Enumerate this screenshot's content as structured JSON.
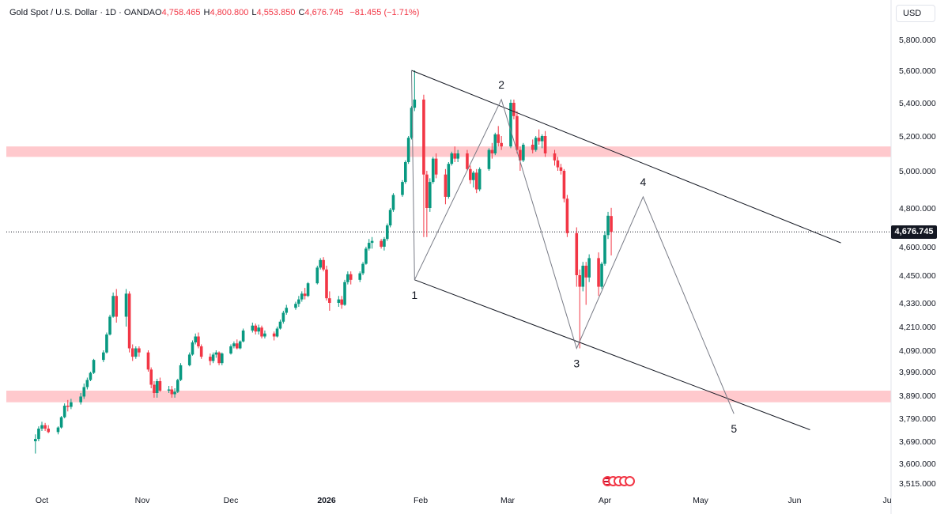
{
  "header": {
    "symbol": "Gold Spot / U.S. Dollar · 1D · OANDA",
    "open_label": "O",
    "open_value": "4,758.465",
    "high_label": "H",
    "high_value": "4,800.800",
    "low_label": "L",
    "low_value": "4,553.850",
    "close_label": "C",
    "close_value": "4,676.745",
    "change": "−81.455 (−1.71%)"
  },
  "currency": "USD",
  "last_price_label": "4,676.745",
  "colors": {
    "up": "#089981",
    "down": "#f23645",
    "zone": "#ffc9cd",
    "axis_text": "#131722",
    "wave_line": "#787b86",
    "channel_line": "#131722"
  },
  "icons": {
    "event_badge": "us-flag-icon"
  },
  "chart_data": {
    "type": "candlestick",
    "y_ticks": [
      "5,800.000",
      "5,600.000",
      "5,400.000",
      "5,200.000",
      "5,000.000",
      "4,800.000",
      "4,600.000",
      "4,450.000",
      "4,330.000",
      "4,210.000",
      "4,090.000",
      "3,990.000",
      "3,890.000",
      "3,790.000",
      "3,690.000",
      "3,600.000",
      "3,515.000"
    ],
    "x_ticks": [
      "Oct",
      "Nov",
      "Dec",
      "2026",
      "Feb",
      "Mar",
      "Apr",
      "May",
      "Jun",
      "Ju"
    ],
    "last_price": 4676.745,
    "resistance_zone": [
      5080,
      5140
    ],
    "support_zone": [
      3860,
      3910
    ],
    "wave_labels": [
      "1",
      "2",
      "3",
      "4",
      "5"
    ],
    "wave_points": [
      {
        "label": "1",
        "date": "2026-01-30",
        "price": 4430
      },
      {
        "label": "2",
        "date": "2026-02-27",
        "price": 5420
      },
      {
        "label": "3",
        "date": "2026-03-23",
        "price": 4100
      },
      {
        "label": "4",
        "date": "2026-04-13",
        "price": 4860
      },
      {
        "label": "5",
        "date": "2026-05-12",
        "price": 3810
      }
    ],
    "wave_start": {
      "date": "2026-01-29",
      "price": 5600
    },
    "channel_upper": [
      {
        "date": "2026-01-29",
        "price": 5600
      },
      {
        "date": "2026-06-16",
        "price": 4620
      }
    ],
    "channel_lower": [
      {
        "date": "2026-01-30",
        "price": 4430
      },
      {
        "date": "2026-06-06",
        "price": 3740
      }
    ],
    "candles": [
      [
        "2025-09-29",
        3690,
        3720,
        3640,
        3700
      ],
      [
        "2025-09-30",
        3700,
        3755,
        3690,
        3745
      ],
      [
        "2025-10-01",
        3745,
        3775,
        3735,
        3760
      ],
      [
        "2025-10-02",
        3760,
        3770,
        3735,
        3745
      ],
      [
        "2025-10-03",
        3745,
        3760,
        3725,
        3730
      ],
      [
        "2025-10-06",
        3730,
        3755,
        3720,
        3750
      ],
      [
        "2025-10-07",
        3750,
        3800,
        3745,
        3795
      ],
      [
        "2025-10-08",
        3795,
        3855,
        3790,
        3845
      ],
      [
        "2025-10-09",
        3845,
        3870,
        3820,
        3840
      ],
      [
        "2025-10-10",
        3840,
        3875,
        3830,
        3860
      ],
      [
        "2025-10-13",
        3860,
        3900,
        3850,
        3885
      ],
      [
        "2025-10-14",
        3885,
        3940,
        3875,
        3925
      ],
      [
        "2025-10-15",
        3925,
        3965,
        3915,
        3955
      ],
      [
        "2025-10-16",
        3955,
        3990,
        3950,
        3985
      ],
      [
        "2025-10-17",
        3985,
        4050,
        3980,
        4045
      ],
      [
        "2025-10-20",
        4045,
        4090,
        4035,
        4080
      ],
      [
        "2025-10-21",
        4080,
        4180,
        4075,
        4170
      ],
      [
        "2025-10-22",
        4170,
        4270,
        4165,
        4260
      ],
      [
        "2025-10-23",
        4260,
        4375,
        4255,
        4360
      ],
      [
        "2025-10-24",
        4360,
        4390,
        4230,
        4260
      ],
      [
        "2025-10-27",
        4260,
        4390,
        4210,
        4370
      ],
      [
        "2025-10-28",
        4370,
        4380,
        4080,
        4100
      ],
      [
        "2025-10-29",
        4100,
        4120,
        4040,
        4060
      ],
      [
        "2025-10-30",
        4060,
        4110,
        4050,
        4100
      ],
      [
        "2025-10-31",
        4100,
        4110,
        4060,
        4080
      ],
      [
        "2025-11-03",
        4080,
        4090,
        3990,
        4000
      ],
      [
        "2025-11-04",
        4000,
        4010,
        3920,
        3935
      ],
      [
        "2025-11-05",
        3935,
        3950,
        3880,
        3900
      ],
      [
        "2025-11-06",
        3900,
        3960,
        3880,
        3950
      ],
      [
        "2025-11-07",
        3950,
        3965,
        3905,
        3910
      ],
      [
        "2025-11-10",
        3910,
        3930,
        3900,
        3915
      ],
      [
        "2025-11-11",
        3915,
        3930,
        3880,
        3895
      ],
      [
        "2025-11-12",
        3895,
        3920,
        3880,
        3905
      ],
      [
        "2025-11-13",
        3905,
        3960,
        3900,
        3955
      ],
      [
        "2025-11-14",
        3955,
        4030,
        3950,
        4020
      ],
      [
        "2025-11-17",
        4020,
        4080,
        4015,
        4070
      ],
      [
        "2025-11-18",
        4070,
        4140,
        4065,
        4130
      ],
      [
        "2025-11-19",
        4130,
        4175,
        4120,
        4160
      ],
      [
        "2025-11-20",
        4160,
        4180,
        4100,
        4110
      ],
      [
        "2025-11-21",
        4110,
        4120,
        4050,
        4060
      ],
      [
        "2025-11-24",
        4060,
        4075,
        4020,
        4040
      ],
      [
        "2025-11-25",
        4040,
        4080,
        4030,
        4070
      ],
      [
        "2025-11-26",
        4070,
        4090,
        4055,
        4080
      ],
      [
        "2025-11-27",
        4080,
        4085,
        4020,
        4030
      ],
      [
        "2025-11-28",
        4030,
        4080,
        4020,
        4075
      ],
      [
        "2025-12-01",
        4075,
        4120,
        4070,
        4110
      ],
      [
        "2025-12-02",
        4110,
        4135,
        4100,
        4125
      ],
      [
        "2025-12-03",
        4125,
        4145,
        4095,
        4100
      ],
      [
        "2025-12-04",
        4100,
        4140,
        4095,
        4135
      ],
      [
        "2025-12-05",
        4135,
        4200,
        4130,
        4190
      ],
      [
        "2025-12-08",
        4190,
        4230,
        4180,
        4215
      ],
      [
        "2025-12-09",
        4215,
        4225,
        4170,
        4185
      ],
      [
        "2025-12-10",
        4185,
        4220,
        4170,
        4205
      ],
      [
        "2025-12-11",
        4205,
        4215,
        4150,
        4160
      ],
      [
        "2025-12-12",
        4160,
        4190,
        4150,
        4175
      ],
      [
        "2025-12-15",
        4175,
        4185,
        4140,
        4160
      ],
      [
        "2025-12-16",
        4160,
        4210,
        4155,
        4200
      ],
      [
        "2025-12-17",
        4200,
        4245,
        4195,
        4235
      ],
      [
        "2025-12-18",
        4235,
        4290,
        4225,
        4280
      ],
      [
        "2025-12-19",
        4280,
        4320,
        4270,
        4305
      ],
      [
        "2025-12-22",
        4305,
        4335,
        4295,
        4325
      ],
      [
        "2025-12-23",
        4325,
        4360,
        4310,
        4345
      ],
      [
        "2025-12-24",
        4345,
        4380,
        4335,
        4370
      ],
      [
        "2025-12-25",
        4370,
        4395,
        4345,
        4360
      ],
      [
        "2025-12-26",
        4360,
        4420,
        4355,
        4415
      ],
      [
        "2025-12-29",
        4415,
        4500,
        4410,
        4490
      ],
      [
        "2025-12-30",
        4490,
        4540,
        4480,
        4530
      ],
      [
        "2025-12-31",
        4530,
        4545,
        4470,
        4480
      ],
      [
        "2026-01-01",
        4480,
        4500,
        4340,
        4350
      ],
      [
        "2026-01-02",
        4350,
        4380,
        4290,
        4330
      ],
      [
        "2026-01-05",
        4330,
        4360,
        4310,
        4345
      ],
      [
        "2026-01-06",
        4345,
        4360,
        4300,
        4320
      ],
      [
        "2026-01-07",
        4320,
        4430,
        4315,
        4420
      ],
      [
        "2026-01-08",
        4420,
        4470,
        4410,
        4455
      ],
      [
        "2026-01-09",
        4455,
        4470,
        4410,
        4430
      ],
      [
        "2026-01-12",
        4430,
        4470,
        4420,
        4460
      ],
      [
        "2026-01-13",
        4460,
        4520,
        4450,
        4510
      ],
      [
        "2026-01-14",
        4510,
        4600,
        4505,
        4590
      ],
      [
        "2026-01-15",
        4590,
        4640,
        4580,
        4620
      ],
      [
        "2026-01-16",
        4620,
        4650,
        4590,
        4630
      ],
      [
        "2026-01-19",
        4630,
        4640,
        4590,
        4600
      ],
      [
        "2026-01-20",
        4600,
        4650,
        4580,
        4640
      ],
      [
        "2026-01-21",
        4640,
        4720,
        4630,
        4710
      ],
      [
        "2026-01-22",
        4710,
        4800,
        4700,
        4790
      ],
      [
        "2026-01-23",
        4790,
        4880,
        4780,
        4870
      ],
      [
        "2026-01-26",
        4870,
        4950,
        4860,
        4940
      ],
      [
        "2026-01-27",
        4940,
        5060,
        4930,
        5050
      ],
      [
        "2026-01-28",
        5050,
        5200,
        5040,
        5190
      ],
      [
        "2026-01-29",
        5190,
        5380,
        5180,
        5370
      ],
      [
        "2026-01-30",
        5370,
        5600,
        5350,
        5420
      ],
      [
        "2026-02-02",
        5420,
        5450,
        4650,
        4980
      ],
      [
        "2026-02-03",
        4980,
        5000,
        4650,
        4800
      ],
      [
        "2026-02-04",
        4800,
        4960,
        4780,
        4940
      ],
      [
        "2026-02-05",
        4940,
        5080,
        4930,
        5070
      ],
      [
        "2026-02-06",
        5070,
        5100,
        4960,
        4980
      ],
      [
        "2026-02-09",
        4980,
        5010,
        4820,
        4860
      ],
      [
        "2026-02-10",
        4860,
        5050,
        4850,
        5040
      ],
      [
        "2026-02-11",
        5040,
        5110,
        5030,
        5100
      ],
      [
        "2026-02-12",
        5100,
        5140,
        5050,
        5070
      ],
      [
        "2026-02-13",
        5070,
        5120,
        5050,
        5100
      ],
      [
        "2026-02-16",
        5100,
        5120,
        5000,
        5010
      ],
      [
        "2026-02-17",
        5010,
        5030,
        4930,
        4950
      ],
      [
        "2026-02-18",
        4950,
        5000,
        4910,
        4990
      ],
      [
        "2026-02-19",
        4990,
        5010,
        4880,
        4900
      ],
      [
        "2026-02-20",
        4900,
        5020,
        4890,
        5010
      ],
      [
        "2026-02-23",
        5010,
        5130,
        5000,
        5120
      ],
      [
        "2026-02-24",
        5120,
        5160,
        5070,
        5100
      ],
      [
        "2026-02-25",
        5100,
        5220,
        5090,
        5210
      ],
      [
        "2026-02-26",
        5210,
        5260,
        5140,
        5160
      ],
      [
        "2026-02-27",
        5160,
        5200,
        5120,
        5140
      ],
      [
        "2026-03-02",
        5140,
        5420,
        5130,
        5400
      ],
      [
        "2026-03-03",
        5400,
        5420,
        5300,
        5320
      ],
      [
        "2026-03-04",
        5320,
        5350,
        5100,
        5120
      ],
      [
        "2026-03-05",
        5120,
        5140,
        5000,
        5060
      ],
      [
        "2026-03-06",
        5060,
        5160,
        5050,
        5150
      ],
      [
        "2026-03-09",
        5150,
        5180,
        5100,
        5120
      ],
      [
        "2026-03-10",
        5120,
        5200,
        5110,
        5190
      ],
      [
        "2026-03-11",
        5190,
        5240,
        5150,
        5170
      ],
      [
        "2026-03-12",
        5170,
        5210,
        5130,
        5200
      ],
      [
        "2026-03-13",
        5200,
        5230,
        5080,
        5100
      ],
      [
        "2026-03-16",
        5100,
        5120,
        5030,
        5060
      ],
      [
        "2026-03-17",
        5060,
        5080,
        5000,
        5020
      ],
      [
        "2026-03-18",
        5020,
        5040,
        4980,
        5000
      ],
      [
        "2026-03-19",
        5000,
        5010,
        4830,
        4850
      ],
      [
        "2026-03-20",
        4850,
        4870,
        4650,
        4670
      ],
      [
        "2026-03-23",
        4670,
        4700,
        4400,
        4450
      ],
      [
        "2026-03-24",
        4450,
        4480,
        4100,
        4400
      ],
      [
        "2026-03-25",
        4400,
        4520,
        4380,
        4500
      ],
      [
        "2026-03-26",
        4500,
        4520,
        4320,
        4440
      ],
      [
        "2026-03-27",
        4440,
        4560,
        4420,
        4540
      ],
      [
        "2026-03-30",
        4540,
        4570,
        4360,
        4400
      ],
      [
        "2026-03-31",
        4400,
        4520,
        4390,
        4510
      ],
      [
        "2026-04-01",
        4510,
        4680,
        4500,
        4660
      ],
      [
        "2026-04-02",
        4660,
        4780,
        4640,
        4760
      ],
      [
        "2026-04-03",
        4758.465,
        4800.8,
        4553.85,
        4676.745
      ]
    ]
  }
}
